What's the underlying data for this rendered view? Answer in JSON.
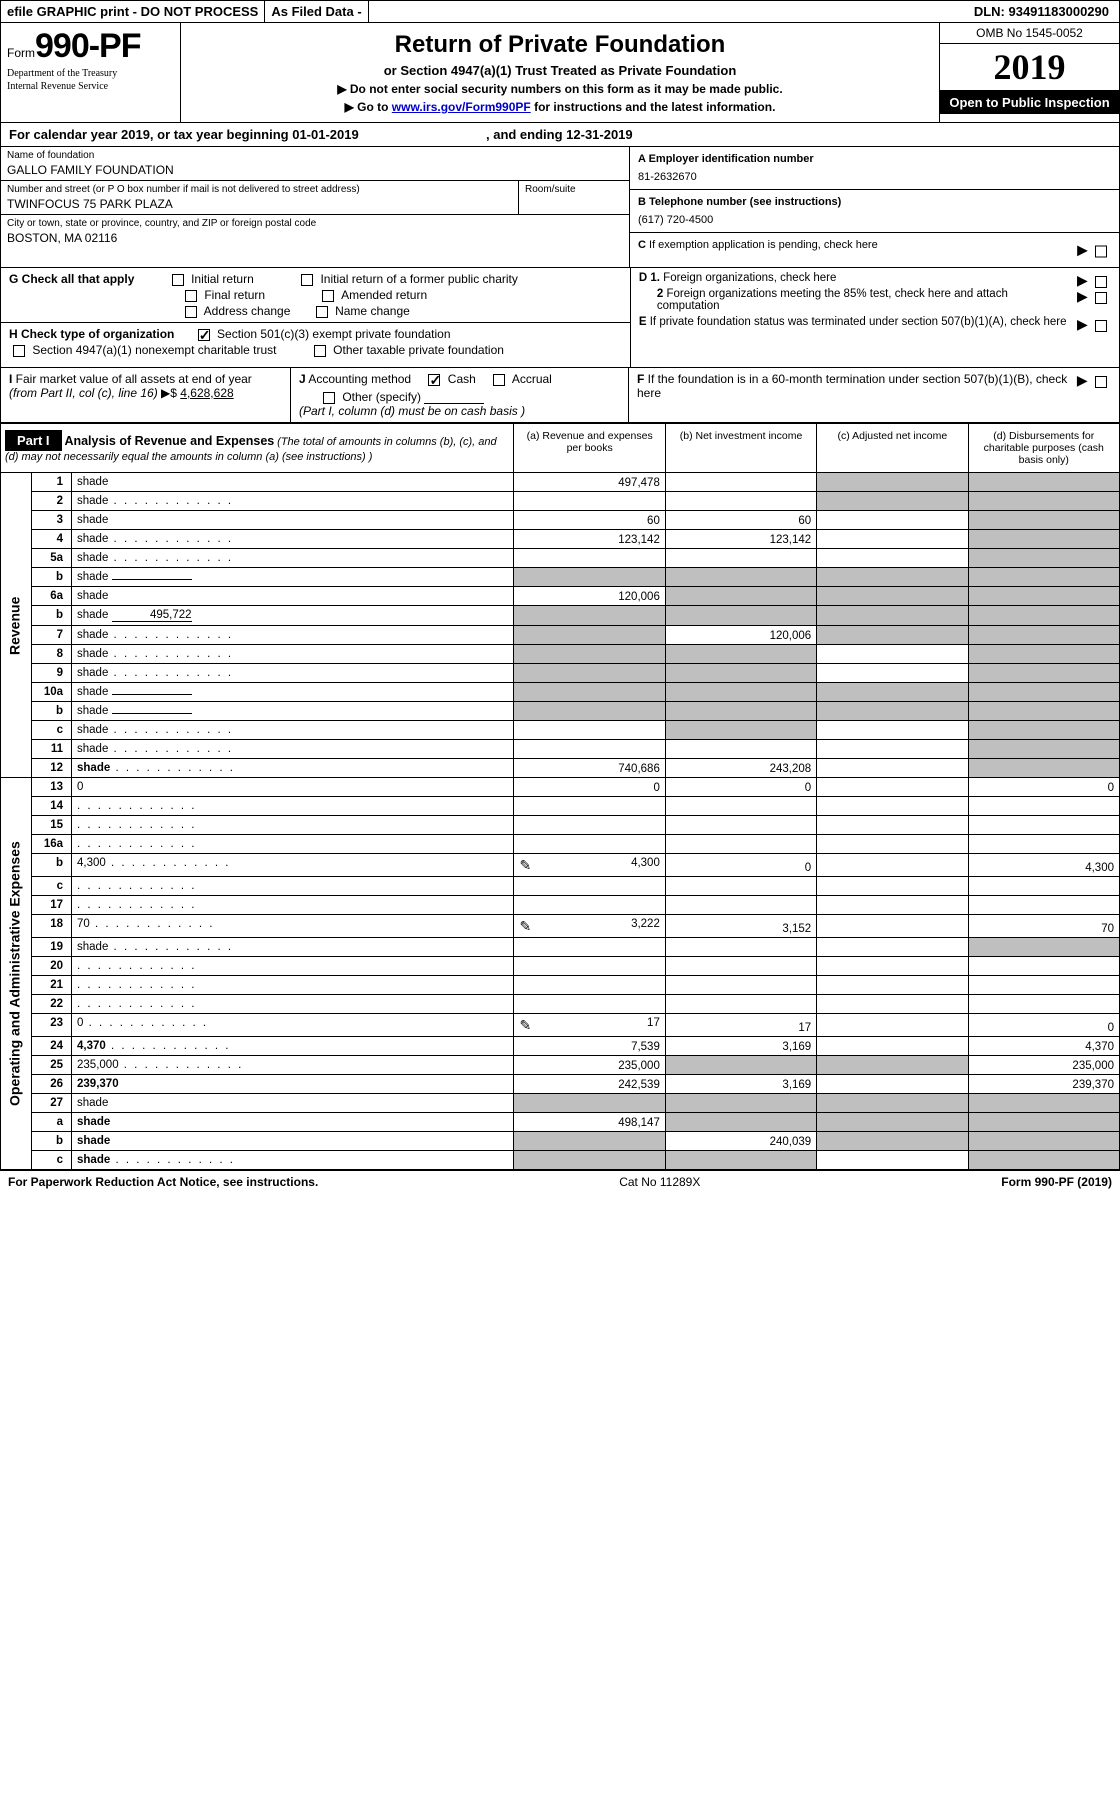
{
  "topbar": {
    "efile": "efile GRAPHIC print - DO NOT PROCESS",
    "asfiled": "As Filed Data -",
    "dln_label": "DLN:",
    "dln": "93491183000290"
  },
  "header": {
    "form_word": "Form",
    "form_no": "990-PF",
    "dept1": "Department of the Treasury",
    "dept2": "Internal Revenue Service",
    "title": "Return of Private Foundation",
    "subtitle": "or Section 4947(a)(1) Trust Treated as Private Foundation",
    "note1": "▶ Do not enter social security numbers on this form as it may be made public.",
    "note2_pre": "▶ Go to ",
    "note2_link": "www.irs.gov/Form990PF",
    "note2_post": " for instructions and the latest information.",
    "omb": "OMB No 1545-0052",
    "year": "2019",
    "open": "Open to Public Inspection"
  },
  "calyear": {
    "text": "For calendar year 2019, or tax year beginning 01-01-2019",
    "ending": ", and ending 12-31-2019"
  },
  "left_info": {
    "name_label": "Name of foundation",
    "name": "GALLO FAMILY FOUNDATION",
    "street_label": "Number and street (or P O  box number if mail is not delivered to street address)",
    "room_label": "Room/suite",
    "street": "TWINFOCUS 75 PARK PLAZA",
    "city_label": "City or town, state or province, country, and ZIP or foreign postal code",
    "city": "BOSTON, MA  02116"
  },
  "right_info": {
    "a_label": "A Employer identification number",
    "a_val": "81-2632670",
    "b_label": "B Telephone number (see instructions)",
    "b_val": "(617) 720-4500",
    "c_label": "C If exemption application is pending, check here",
    "d1": "D 1. Foreign organizations, check here",
    "d2": "2 Foreign organizations meeting the 85% test, check here and attach computation",
    "e": "E If private foundation status was terminated under section 507(b)(1)(A), check here",
    "f": "F If the foundation is in a 60-month termination under section 507(b)(1)(B), check here"
  },
  "g": {
    "label": "G Check all that apply",
    "opts": [
      "Initial return",
      "Initial return of a former public charity",
      "Final return",
      "Amended return",
      "Address change",
      "Name change"
    ]
  },
  "h": {
    "label": "H Check type of organization",
    "opt1": "Section 501(c)(3) exempt private foundation",
    "opt2": "Section 4947(a)(1) nonexempt charitable trust",
    "opt3": "Other taxable private foundation"
  },
  "i": {
    "label": "I Fair market value of all assets at end of year (from Part II, col (c), line 16) ▶$",
    "val": "4,628,628"
  },
  "j": {
    "label": "J Accounting method",
    "cash": "Cash",
    "accrual": "Accrual",
    "other": "Other (specify)",
    "note": "(Part I, column (d) must be on cash basis )"
  },
  "part1": {
    "part_label": "Part I",
    "title": "Analysis of Revenue and Expenses",
    "title_note": "(The total of amounts in columns (b), (c), and (d) may not necessarily equal the amounts in column (a) (see instructions) )",
    "col_a": "(a)   Revenue and expenses per books",
    "col_b": "(b)   Net investment income",
    "col_c": "(c)  Adjusted net income",
    "col_d": "(d)  Disbursements for charitable purposes (cash basis only)",
    "rev_label": "Revenue",
    "exp_label": "Operating and Administrative Expenses"
  },
  "rows": [
    {
      "n": "1",
      "d": "shade",
      "a": "497,478",
      "b": "",
      "c": "shade"
    },
    {
      "n": "2",
      "d": "shade",
      "dots": true,
      "a": "",
      "b": "",
      "c": "shade"
    },
    {
      "n": "3",
      "d": "shade",
      "a": "60",
      "b": "60",
      "c": ""
    },
    {
      "n": "4",
      "d": "shade",
      "dots": true,
      "a": "123,142",
      "b": "123,142",
      "c": ""
    },
    {
      "n": "5a",
      "d": "shade",
      "dots": true,
      "a": "",
      "b": "",
      "c": ""
    },
    {
      "n": "b",
      "d": "shade",
      "il": true,
      "a": "shade",
      "b": "shade",
      "c": "shade"
    },
    {
      "n": "6a",
      "d": "shade",
      "a": "120,006",
      "b": "shade",
      "c": "shade"
    },
    {
      "n": "b",
      "d": "shade",
      "il": true,
      "ilval": "495,722",
      "a": "shade",
      "b": "shade",
      "c": "shade"
    },
    {
      "n": "7",
      "d": "shade",
      "dots": true,
      "a": "shade",
      "b": "120,006",
      "c": "shade"
    },
    {
      "n": "8",
      "d": "shade",
      "dots": true,
      "a": "shade",
      "b": "shade",
      "c": ""
    },
    {
      "n": "9",
      "d": "shade",
      "dots": true,
      "a": "shade",
      "b": "shade",
      "c": ""
    },
    {
      "n": "10a",
      "d": "shade",
      "il": true,
      "a": "shade",
      "b": "shade",
      "c": "shade"
    },
    {
      "n": "b",
      "d": "shade",
      "dots": true,
      "il": true,
      "a": "shade",
      "b": "shade",
      "c": "shade"
    },
    {
      "n": "c",
      "d": "shade",
      "dots": true,
      "a": "",
      "b": "shade",
      "c": ""
    },
    {
      "n": "11",
      "d": "shade",
      "dots": true,
      "a": "",
      "b": "",
      "c": ""
    },
    {
      "n": "12",
      "d": "shade",
      "bold": true,
      "dots": true,
      "a": "740,686",
      "b": "243,208",
      "c": ""
    }
  ],
  "exp_rows": [
    {
      "n": "13",
      "d": "0",
      "a": "0",
      "b": "0",
      "c": ""
    },
    {
      "n": "14",
      "d": "",
      "dots": true,
      "a": "",
      "b": "",
      "c": ""
    },
    {
      "n": "15",
      "d": "",
      "dots": true,
      "a": "",
      "b": "",
      "c": ""
    },
    {
      "n": "16a",
      "d": "",
      "dots": true,
      "a": "",
      "b": "",
      "c": ""
    },
    {
      "n": "b",
      "d": "4,300",
      "dots": true,
      "icon": true,
      "a": "4,300",
      "b": "0",
      "c": ""
    },
    {
      "n": "c",
      "d": "",
      "dots": true,
      "a": "",
      "b": "",
      "c": ""
    },
    {
      "n": "17",
      "d": "",
      "dots": true,
      "a": "",
      "b": "",
      "c": ""
    },
    {
      "n": "18",
      "d": "70",
      "dots": true,
      "icon": true,
      "a": "3,222",
      "b": "3,152",
      "c": ""
    },
    {
      "n": "19",
      "d": "shade",
      "dots": true,
      "a": "",
      "b": "",
      "c": ""
    },
    {
      "n": "20",
      "d": "",
      "dots": true,
      "a": "",
      "b": "",
      "c": ""
    },
    {
      "n": "21",
      "d": "",
      "dots": true,
      "a": "",
      "b": "",
      "c": ""
    },
    {
      "n": "22",
      "d": "",
      "dots": true,
      "a": "",
      "b": "",
      "c": ""
    },
    {
      "n": "23",
      "d": "0",
      "dots": true,
      "icon": true,
      "a": "17",
      "b": "17",
      "c": ""
    },
    {
      "n": "24",
      "d": "4,370",
      "bold": true,
      "dots": true,
      "a": "7,539",
      "b": "3,169",
      "c": ""
    },
    {
      "n": "25",
      "d": "235,000",
      "dots": true,
      "a": "235,000",
      "b": "shade",
      "c": "shade"
    },
    {
      "n": "26",
      "d": "239,370",
      "bold": true,
      "a": "242,539",
      "b": "3,169",
      "c": ""
    },
    {
      "n": "27",
      "d": "shade",
      "a": "shade",
      "b": "shade",
      "c": "shade"
    },
    {
      "n": "a",
      "d": "shade",
      "bold": true,
      "a": "498,147",
      "b": "shade",
      "c": "shade"
    },
    {
      "n": "b",
      "d": "shade",
      "bold": true,
      "a": "shade",
      "b": "240,039",
      "c": "shade"
    },
    {
      "n": "c",
      "d": "shade",
      "bold": true,
      "dots": true,
      "a": "shade",
      "b": "shade",
      "c": ""
    }
  ],
  "footer": {
    "left": "For Paperwork Reduction Act Notice, see instructions.",
    "mid": "Cat No 11289X",
    "right": "Form 990-PF (2019)"
  }
}
